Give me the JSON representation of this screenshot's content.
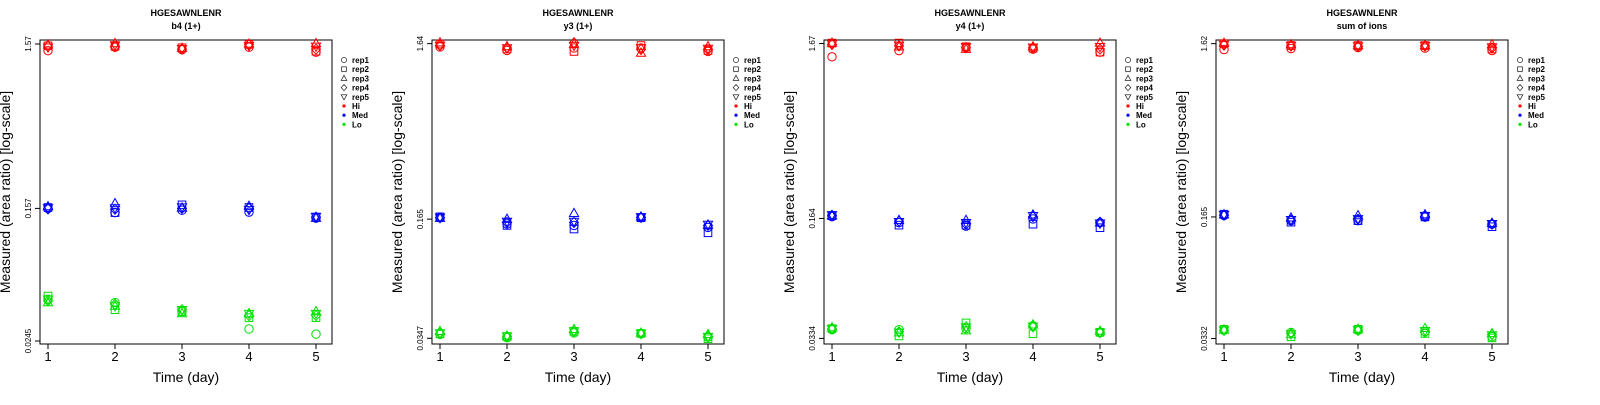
{
  "chart_data": [
    {
      "type": "scatter",
      "title": "HGESAWNLENR",
      "subtitle": "b4 (1+)",
      "xlabel": "Time (day)",
      "ylabel": "Measured (area ratio) [log-scale]",
      "x_ticks": [
        "1",
        "2",
        "3",
        "4",
        "5"
      ],
      "y_ticks": [
        {
          "value": 0.0245,
          "label": "0.0245"
        },
        {
          "value": 0.157,
          "label": "0.157"
        },
        {
          "value": 1.57,
          "label": "1.57"
        }
      ],
      "log_scale": true,
      "ylim": [
        0.0235,
        1.66
      ],
      "series": [
        {
          "level": "Hi",
          "rep": "rep1",
          "values": [
            1.43,
            1.5,
            1.45,
            1.5,
            1.4
          ]
        },
        {
          "level": "Hi",
          "rep": "rep2",
          "values": [
            1.53,
            1.52,
            1.49,
            1.56,
            1.42
          ]
        },
        {
          "level": "Hi",
          "rep": "rep3",
          "values": [
            1.55,
            1.58,
            1.48,
            1.57,
            1.58
          ]
        },
        {
          "level": "Hi",
          "rep": "rep4",
          "values": [
            1.52,
            1.51,
            1.46,
            1.56,
            1.46
          ]
        },
        {
          "level": "Hi",
          "rep": "rep5",
          "values": [
            1.5,
            1.55,
            1.47,
            1.53,
            1.52
          ]
        },
        {
          "level": "Med",
          "rep": "rep1",
          "values": [
            0.157,
            0.148,
            0.153,
            0.149,
            0.137
          ]
        },
        {
          "level": "Med",
          "rep": "rep2",
          "values": [
            0.159,
            0.148,
            0.165,
            0.159,
            0.139
          ]
        },
        {
          "level": "Med",
          "rep": "rep3",
          "values": [
            0.161,
            0.168,
            0.158,
            0.162,
            0.137
          ]
        },
        {
          "level": "Med",
          "rep": "rep4",
          "values": [
            0.156,
            0.155,
            0.157,
            0.157,
            0.139
          ]
        },
        {
          "level": "Med",
          "rep": "rep5",
          "values": [
            0.158,
            0.158,
            0.16,
            0.154,
            0.14
          ]
        },
        {
          "level": "Lo",
          "rep": "rep1",
          "values": [
            0.044,
            0.042,
            0.037,
            0.029,
            0.027
          ]
        },
        {
          "level": "Lo",
          "rep": "rep2",
          "values": [
            0.046,
            0.038,
            0.037,
            0.034,
            0.034
          ]
        },
        {
          "level": "Lo",
          "rep": "rep3",
          "values": [
            0.042,
            0.04,
            0.036,
            0.036,
            0.037
          ]
        },
        {
          "level": "Lo",
          "rep": "rep4",
          "values": [
            0.043,
            0.041,
            0.038,
            0.035,
            0.035
          ]
        },
        {
          "level": "Lo",
          "rep": "rep5",
          "values": [
            0.044,
            0.04,
            0.038,
            0.036,
            0.036
          ]
        }
      ]
    },
    {
      "type": "scatter",
      "title": "HGESAWNLENR",
      "subtitle": "y3 (1+)",
      "xlabel": "Time (day)",
      "ylabel": "Measured (area ratio) [log-scale]",
      "x_ticks": [
        "1",
        "2",
        "3",
        "4",
        "5"
      ],
      "y_ticks": [
        {
          "value": 0.0347,
          "label": "0.0347"
        },
        {
          "value": 0.165,
          "label": "0.165"
        },
        {
          "value": 1.64,
          "label": "1.64"
        }
      ],
      "log_scale": true,
      "ylim": [
        0.0322,
        1.72
      ],
      "series": [
        {
          "level": "Hi",
          "rep": "rep1",
          "values": [
            1.57,
            1.5,
            1.55,
            1.55,
            1.48
          ]
        },
        {
          "level": "Hi",
          "rep": "rep2",
          "values": [
            1.63,
            1.53,
            1.48,
            1.6,
            1.5
          ]
        },
        {
          "level": "Hi",
          "rep": "rep3",
          "values": [
            1.66,
            1.58,
            1.63,
            1.45,
            1.58
          ]
        },
        {
          "level": "Hi",
          "rep": "rep4",
          "values": [
            1.6,
            1.55,
            1.66,
            1.52,
            1.52
          ]
        },
        {
          "level": "Hi",
          "rep": "rep5",
          "values": [
            1.6,
            1.55,
            1.6,
            1.55,
            1.54
          ]
        },
        {
          "level": "Med",
          "rep": "rep1",
          "values": [
            0.168,
            0.155,
            0.152,
            0.168,
            0.148
          ]
        },
        {
          "level": "Med",
          "rep": "rep2",
          "values": [
            0.17,
            0.152,
            0.145,
            0.168,
            0.138
          ]
        },
        {
          "level": "Med",
          "rep": "rep3",
          "values": [
            0.167,
            0.165,
            0.178,
            0.17,
            0.153
          ]
        },
        {
          "level": "Med",
          "rep": "rep4",
          "values": [
            0.168,
            0.158,
            0.158,
            0.169,
            0.152
          ]
        },
        {
          "level": "Med",
          "rep": "rep5",
          "values": [
            0.169,
            0.16,
            0.16,
            0.17,
            0.154
          ]
        },
        {
          "level": "Lo",
          "rep": "rep1",
          "values": [
            0.0365,
            0.035,
            0.0372,
            0.0368,
            0.0352
          ]
        },
        {
          "level": "Lo",
          "rep": "rep2",
          "values": [
            0.0368,
            0.0355,
            0.038,
            0.037,
            0.0345
          ]
        },
        {
          "level": "Lo",
          "rep": "rep3",
          "values": [
            0.038,
            0.0358,
            0.039,
            0.0372,
            0.0365
          ]
        },
        {
          "level": "Lo",
          "rep": "rep4",
          "values": [
            0.037,
            0.0355,
            0.0378,
            0.0369,
            0.0356
          ]
        },
        {
          "level": "Lo",
          "rep": "rep5",
          "values": [
            0.0372,
            0.0357,
            0.0382,
            0.037,
            0.0355
          ]
        }
      ]
    },
    {
      "type": "scatter",
      "title": "HGESAWNLENR",
      "subtitle": "y4 (1+)",
      "xlabel": "Time (day)",
      "ylabel": "Measured (area ratio) [log-scale]",
      "x_ticks": [
        "1",
        "2",
        "3",
        "4",
        "5"
      ],
      "y_ticks": [
        {
          "value": 0.0334,
          "label": "0.0334"
        },
        {
          "value": 0.164,
          "label": "0.164"
        },
        {
          "value": 1.67,
          "label": "1.67"
        }
      ],
      "log_scale": true,
      "ylim": [
        0.031,
        1.75
      ],
      "series": [
        {
          "level": "Hi",
          "rep": "rep1",
          "values": [
            1.4,
            1.52,
            1.58,
            1.55,
            1.49
          ]
        },
        {
          "level": "Hi",
          "rep": "rep2",
          "values": [
            1.68,
            1.68,
            1.6,
            1.57,
            1.49
          ]
        },
        {
          "level": "Hi",
          "rep": "rep3",
          "values": [
            1.68,
            1.6,
            1.55,
            1.6,
            1.68
          ]
        },
        {
          "level": "Hi",
          "rep": "rep4",
          "values": [
            1.65,
            1.62,
            1.58,
            1.58,
            1.55
          ]
        },
        {
          "level": "Hi",
          "rep": "rep5",
          "values": [
            1.66,
            1.63,
            1.6,
            1.59,
            1.6
          ]
        },
        {
          "level": "Med",
          "rep": "rep1",
          "values": [
            0.168,
            0.155,
            0.148,
            0.163,
            0.155
          ]
        },
        {
          "level": "Med",
          "rep": "rep2",
          "values": [
            0.17,
            0.15,
            0.15,
            0.152,
            0.145
          ]
        },
        {
          "level": "Med",
          "rep": "rep3",
          "values": [
            0.17,
            0.16,
            0.16,
            0.172,
            0.155
          ]
        },
        {
          "level": "Med",
          "rep": "rep4",
          "values": [
            0.171,
            0.158,
            0.152,
            0.168,
            0.156
          ]
        },
        {
          "level": "Med",
          "rep": "rep5",
          "values": [
            0.172,
            0.157,
            0.155,
            0.17,
            0.154
          ]
        },
        {
          "level": "Lo",
          "rep": "rep1",
          "values": [
            0.0375,
            0.0375,
            0.038,
            0.0395,
            0.036
          ]
        },
        {
          "level": "Lo",
          "rep": "rep2",
          "values": [
            0.038,
            0.0345,
            0.041,
            0.0355,
            0.0362
          ]
        },
        {
          "level": "Lo",
          "rep": "rep3",
          "values": [
            0.0385,
            0.036,
            0.037,
            0.04,
            0.0368
          ]
        },
        {
          "level": "Lo",
          "rep": "rep4",
          "values": [
            0.0378,
            0.0365,
            0.039,
            0.039,
            0.0361
          ]
        },
        {
          "level": "Lo",
          "rep": "rep5",
          "values": [
            0.038,
            0.0362,
            0.0388,
            0.0392,
            0.0362
          ]
        }
      ]
    },
    {
      "type": "scatter",
      "title": "HGESAWNLENR",
      "subtitle": "sum of ions",
      "xlabel": "Time (day)",
      "ylabel": "Measured (area ratio) [log-scale]",
      "x_ticks": [
        "1",
        "2",
        "3",
        "4",
        "5"
      ],
      "y_ticks": [
        {
          "value": 0.0332,
          "label": "0.0332"
        },
        {
          "value": 0.165,
          "label": "0.165"
        },
        {
          "value": 1.62,
          "label": "1.62"
        }
      ],
      "log_scale": true,
      "ylim": [
        0.0309,
        1.7
      ],
      "series": [
        {
          "level": "Hi",
          "rep": "rep1",
          "values": [
            1.5,
            1.52,
            1.54,
            1.53,
            1.48
          ]
        },
        {
          "level": "Hi",
          "rep": "rep2",
          "values": [
            1.62,
            1.58,
            1.58,
            1.58,
            1.51
          ]
        },
        {
          "level": "Hi",
          "rep": "rep3",
          "values": [
            1.63,
            1.6,
            1.58,
            1.58,
            1.6
          ]
        },
        {
          "level": "Hi",
          "rep": "rep4",
          "values": [
            1.59,
            1.57,
            1.56,
            1.57,
            1.53
          ]
        },
        {
          "level": "Hi",
          "rep": "rep5",
          "values": [
            1.6,
            1.58,
            1.57,
            1.58,
            1.55
          ]
        },
        {
          "level": "Med",
          "rep": "rep1",
          "values": [
            0.168,
            0.157,
            0.157,
            0.165,
            0.15
          ]
        },
        {
          "level": "Med",
          "rep": "rep2",
          "values": [
            0.171,
            0.154,
            0.157,
            0.165,
            0.145
          ]
        },
        {
          "level": "Med",
          "rep": "rep3",
          "values": [
            0.17,
            0.163,
            0.168,
            0.17,
            0.152
          ]
        },
        {
          "level": "Med",
          "rep": "rep4",
          "values": [
            0.169,
            0.158,
            0.16,
            0.166,
            0.15
          ]
        },
        {
          "level": "Med",
          "rep": "rep5",
          "values": [
            0.17,
            0.159,
            0.161,
            0.168,
            0.151
          ]
        },
        {
          "level": "Lo",
          "rep": "rep1",
          "values": [
            0.037,
            0.036,
            0.037,
            0.0365,
            0.034
          ]
        },
        {
          "level": "Lo",
          "rep": "rep2",
          "values": [
            0.0375,
            0.034,
            0.0375,
            0.0355,
            0.0335
          ]
        },
        {
          "level": "Lo",
          "rep": "rep3",
          "values": [
            0.0372,
            0.035,
            0.0376,
            0.038,
            0.0355
          ]
        },
        {
          "level": "Lo",
          "rep": "rep4",
          "values": [
            0.037,
            0.0355,
            0.037,
            0.036,
            0.035
          ]
        },
        {
          "level": "Lo",
          "rep": "rep5",
          "values": [
            0.0371,
            0.0353,
            0.0372,
            0.0368,
            0.0348
          ]
        }
      ]
    }
  ],
  "legend": {
    "reps": [
      {
        "label": "rep1",
        "shape": "circle"
      },
      {
        "label": "rep2",
        "shape": "square"
      },
      {
        "label": "rep3",
        "shape": "triangle-up"
      },
      {
        "label": "rep4",
        "shape": "diamond"
      },
      {
        "label": "rep5",
        "shape": "triangle-down"
      }
    ],
    "levels": [
      {
        "label": "Hi",
        "color": "#ff0000"
      },
      {
        "label": "Med",
        "color": "#0000ff"
      },
      {
        "label": "Lo",
        "color": "#00e000"
      }
    ]
  }
}
